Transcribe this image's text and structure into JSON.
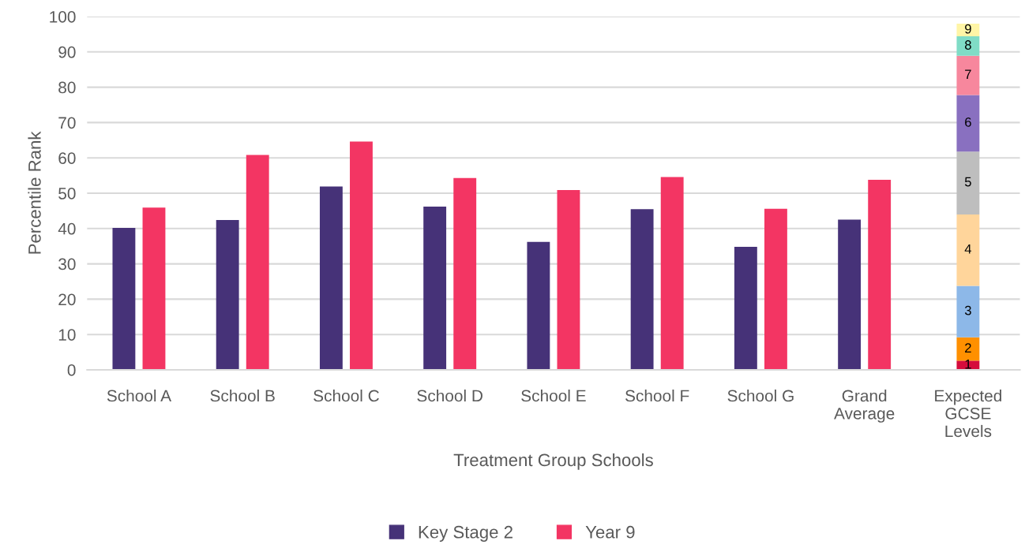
{
  "chart_data": {
    "type": "bar",
    "xlabel": "Treatment Group Schools",
    "ylabel": "Percentile Rank",
    "categories": [
      "School A",
      "School B",
      "School C",
      "School D",
      "School E",
      "School F",
      "School G",
      "Grand Average",
      "Expected GCSE Levels"
    ],
    "series": [
      {
        "name": "Key Stage 2",
        "color": "#463278",
        "values": [
          40.2,
          42.4,
          51.9,
          46.2,
          36.2,
          45.5,
          34.8,
          42.5,
          null
        ]
      },
      {
        "name": "Year 9",
        "color": "#f33563",
        "values": [
          45.9,
          60.8,
          64.6,
          54.3,
          50.9,
          54.6,
          45.6,
          53.8,
          null
        ]
      },
      {
        "name": "1",
        "color": "#d50c3c",
        "values": [
          null,
          null,
          null,
          null,
          null,
          null,
          null,
          null,
          2.6
        ],
        "base": [
          null,
          null,
          null,
          null,
          null,
          null,
          null,
          null,
          0
        ]
      },
      {
        "name": "2",
        "color": "#ff9000",
        "values": [
          null,
          null,
          null,
          null,
          null,
          null,
          null,
          null,
          6.6
        ],
        "base": [
          null,
          null,
          null,
          null,
          null,
          null,
          null,
          null,
          2.6
        ]
      },
      {
        "name": "3",
        "color": "#8db8e8",
        "values": [
          null,
          null,
          null,
          null,
          null,
          null,
          null,
          null,
          14.6
        ],
        "base": [
          null,
          null,
          null,
          null,
          null,
          null,
          null,
          null,
          9.2
        ]
      },
      {
        "name": "4",
        "color": "#ffd59b",
        "values": [
          null,
          null,
          null,
          null,
          null,
          null,
          null,
          null,
          20.2
        ],
        "base": [
          null,
          null,
          null,
          null,
          null,
          null,
          null,
          null,
          23.8
        ]
      },
      {
        "name": "5",
        "color": "#bebebe",
        "values": [
          null,
          null,
          null,
          null,
          null,
          null,
          null,
          null,
          17.8
        ],
        "base": [
          null,
          null,
          null,
          null,
          null,
          null,
          null,
          null,
          44.0
        ]
      },
      {
        "name": "6",
        "color": "#8970c0",
        "values": [
          null,
          null,
          null,
          null,
          null,
          null,
          null,
          null,
          16.0
        ],
        "base": [
          null,
          null,
          null,
          null,
          null,
          null,
          null,
          null,
          61.8
        ]
      },
      {
        "name": "7",
        "color": "#f7879d",
        "values": [
          null,
          null,
          null,
          null,
          null,
          null,
          null,
          null,
          11.1
        ],
        "base": [
          null,
          null,
          null,
          null,
          null,
          null,
          null,
          null,
          77.8
        ]
      },
      {
        "name": "8",
        "color": "#80dcc6",
        "values": [
          null,
          null,
          null,
          null,
          null,
          null,
          null,
          null,
          5.5
        ],
        "base": [
          null,
          null,
          null,
          null,
          null,
          null,
          null,
          null,
          88.9
        ]
      },
      {
        "name": "9",
        "color": "#fff5a6",
        "values": [
          null,
          null,
          null,
          null,
          null,
          null,
          null,
          null,
          3.6
        ],
        "base": [
          null,
          null,
          null,
          null,
          null,
          null,
          null,
          null,
          94.4
        ]
      }
    ],
    "ylim": [
      0,
      100
    ],
    "yticks": [
      0,
      10,
      20,
      30,
      40,
      50,
      60,
      70,
      80,
      90,
      100
    ],
    "grid": "y",
    "legend": "bottom"
  }
}
